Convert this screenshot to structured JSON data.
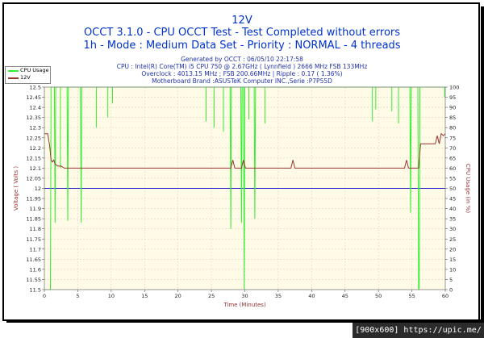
{
  "header": {
    "title": "12V",
    "line2": "OCCT 3.1.0 - CPU OCCT Test - Test Completed without errors",
    "line3": "1h - Mode : Medium Data Set - Priority : NORMAL - 4 threads"
  },
  "info": {
    "generated": "Generated by OCCT : 06/05/10 22:17:58",
    "cpu": "CPU : Intel(R) Core(TM) i5 CPU 750 @ 2.67GHz ( Lynnfield ) 2666 MHz FSB 133MHz",
    "overclock": "Overclock : 4013.15 MHz ; FSB 200.66MHz | Ripple : 0.17 ( 1.36%)",
    "motherboard": "Motherboard Brand :ASUSTeK Computer INC.,Serie :P7P55D"
  },
  "legend": {
    "cpu_usage": "CPU Usage",
    "v12": "12V"
  },
  "footer": {
    "text": "[900x600] https://upic.me/"
  },
  "colors": {
    "cpu_usage": "#33ee33",
    "v12": "#993333",
    "reference": "#2222cc",
    "title": "#0033cc"
  },
  "chart_data": {
    "type": "line",
    "xlabel": "Time (Minutes)",
    "ylabel": "Voltage ( Volts )",
    "ylabel_right": "CPU Usage (in %)",
    "xlim": [
      0,
      60
    ],
    "ylim": [
      11.5,
      12.5
    ],
    "ylim_right": [
      0,
      100
    ],
    "x_ticks": [
      "0",
      "5",
      "10",
      "15",
      "20",
      "25",
      "30",
      "35",
      "40",
      "45",
      "50",
      "55",
      "60"
    ],
    "y_ticks": [
      "11.5",
      "11.55",
      "11.6",
      "11.65",
      "11.7",
      "11.75",
      "11.8",
      "11.85",
      "11.9",
      "11.95",
      "12",
      "12.05",
      "12.1",
      "12.15",
      "12.2",
      "12.25",
      "12.3",
      "12.35",
      "12.4",
      "12.45",
      "12.5"
    ],
    "y_ticks_right": [
      "0",
      "5",
      "10",
      "15",
      "20",
      "25",
      "30",
      "35",
      "40",
      "45",
      "50",
      "55",
      "60",
      "65",
      "70",
      "75",
      "80",
      "85",
      "90",
      "95",
      "100"
    ],
    "reference_line": 12.0,
    "grid": true,
    "legend_position": "top-left",
    "series": [
      {
        "name": "12V",
        "axis": "left",
        "x": [
          0,
          0.5,
          0.8,
          1.0,
          1.2,
          1.4,
          1.6,
          2.0,
          2.5,
          3.0,
          4.0,
          5.0,
          10,
          20,
          27.9,
          28.2,
          28.5,
          29.5,
          29.8,
          30.1,
          31,
          36.9,
          37.2,
          37.5,
          45,
          53.9,
          54.2,
          54.5,
          55.5,
          56.0,
          56.3,
          58.5,
          58.8,
          59.1,
          59.4,
          59.7,
          60
        ],
        "y": [
          12.27,
          12.27,
          12.21,
          12.14,
          12.13,
          12.14,
          12.12,
          12.11,
          12.11,
          12.1,
          12.1,
          12.1,
          12.1,
          12.1,
          12.1,
          12.14,
          12.1,
          12.1,
          12.14,
          12.1,
          12.1,
          12.1,
          12.14,
          12.1,
          12.1,
          12.1,
          12.14,
          12.1,
          12.1,
          12.1,
          12.22,
          12.22,
          12.26,
          12.22,
          12.27,
          12.26,
          12.27
        ]
      },
      {
        "name": "CPU Usage",
        "axis": "right",
        "x": [
          0,
          0.9,
          1.0,
          1.5,
          1.6,
          1.7,
          3.4,
          3.5,
          3.6,
          5.4,
          5.5,
          5.6,
          27.8,
          27.9,
          28.0,
          29.4,
          29.5,
          29.6,
          29.8,
          29.9,
          30.0,
          31.4,
          31.5,
          31.6,
          54.7,
          54.8,
          54.9,
          55.9,
          56.0,
          56.1,
          56.2,
          56.3,
          60
        ],
        "y": [
          0,
          0,
          100,
          100,
          33,
          100,
          100,
          34,
          100,
          100,
          33,
          100,
          100,
          30,
          100,
          100,
          33,
          100,
          100,
          0,
          100,
          100,
          35,
          100,
          100,
          38,
          100,
          100,
          0,
          0,
          100,
          100,
          100
        ]
      }
    ],
    "cpu_spikes": [
      {
        "x": 2.4,
        "y": 60
      },
      {
        "x": 7.8,
        "y": 80
      },
      {
        "x": 9.5,
        "y": 85
      },
      {
        "x": 10.2,
        "y": 92
      },
      {
        "x": 24.2,
        "y": 83
      },
      {
        "x": 25.4,
        "y": 80
      },
      {
        "x": 26.8,
        "y": 78
      },
      {
        "x": 30.6,
        "y": 84
      },
      {
        "x": 33.0,
        "y": 82
      },
      {
        "x": 49.1,
        "y": 83
      },
      {
        "x": 49.6,
        "y": 89
      },
      {
        "x": 52.0,
        "y": 88
      },
      {
        "x": 53.0,
        "y": 82
      },
      {
        "x": 59.9,
        "y": 95
      }
    ]
  }
}
